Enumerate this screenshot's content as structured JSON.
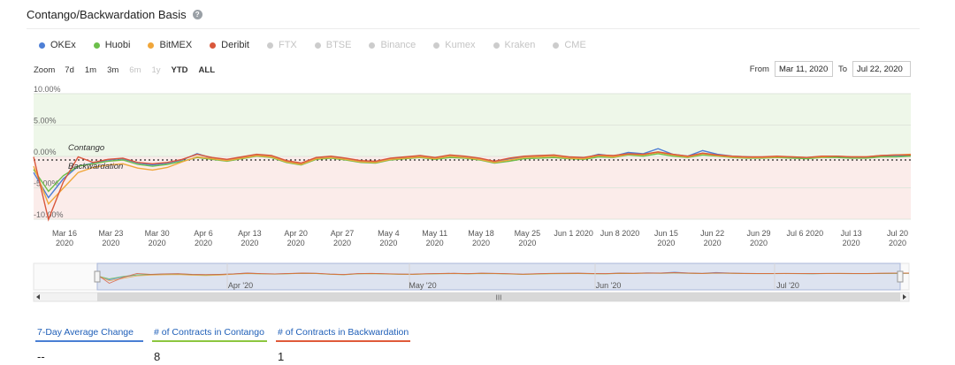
{
  "header": {
    "title": "Contango/Backwardation Basis"
  },
  "legend": [
    {
      "label": "OKEx",
      "color": "#4e7fd6",
      "active": true
    },
    {
      "label": "Huobi",
      "color": "#6cbf4b",
      "active": true
    },
    {
      "label": "BitMEX",
      "color": "#f0a63a",
      "active": true
    },
    {
      "label": "Deribit",
      "color": "#d9573b",
      "active": true
    },
    {
      "label": "FTX",
      "color": "#cccccc",
      "active": false
    },
    {
      "label": "BTSE",
      "color": "#cccccc",
      "active": false
    },
    {
      "label": "Binance",
      "color": "#cccccc",
      "active": false
    },
    {
      "label": "Kumex",
      "color": "#cccccc",
      "active": false
    },
    {
      "label": "Kraken",
      "color": "#cccccc",
      "active": false
    },
    {
      "label": "CME",
      "color": "#cccccc",
      "active": false
    }
  ],
  "zoom": {
    "label": "Zoom",
    "buttons": [
      {
        "label": "7d",
        "enabled": true
      },
      {
        "label": "1m",
        "enabled": true
      },
      {
        "label": "3m",
        "enabled": true
      },
      {
        "label": "6m",
        "enabled": false
      },
      {
        "label": "1y",
        "enabled": false
      },
      {
        "label": "YTD",
        "enabled": true
      },
      {
        "label": "ALL",
        "enabled": true
      }
    ]
  },
  "range": {
    "from_label": "From",
    "from_value": "Mar 11, 2020",
    "to_label": "To",
    "to_value": "Jul 22, 2020"
  },
  "chart_data": {
    "type": "line",
    "title": "Contango/Backwardation Basis",
    "ylim": [
      -10,
      10
    ],
    "y_ticks": [
      "10.00%",
      "5.00%",
      "0.00%",
      "-5.00%",
      "-10.00%"
    ],
    "x_ticks": [
      [
        "Mar 16",
        "2020"
      ],
      [
        "Mar 23",
        "2020"
      ],
      [
        "Mar 30",
        "2020"
      ],
      [
        "Apr 6",
        "2020"
      ],
      [
        "Apr 13",
        "2020"
      ],
      [
        "Apr 20",
        "2020"
      ],
      [
        "Apr 27",
        "2020"
      ],
      [
        "May 4",
        "2020"
      ],
      [
        "May 11",
        "2020"
      ],
      [
        "May 18",
        "2020"
      ],
      [
        "May 25",
        "2020"
      ],
      [
        "Jun 1 2020",
        ""
      ],
      [
        "Jun 8 2020",
        ""
      ],
      [
        "Jun 15",
        "2020"
      ],
      [
        "Jun 22",
        "2020"
      ],
      [
        "Jun 29",
        "2020"
      ],
      [
        "Jul 6 2020",
        ""
      ],
      [
        "Jul 13",
        "2020"
      ],
      [
        "Jul 20",
        "2020"
      ]
    ],
    "x_range": [
      "Mar 11, 2020",
      "Jul 22, 2020"
    ],
    "zones": [
      {
        "label": "Contango",
        "from": 0,
        "to": 10,
        "color": "#eef7e9"
      },
      {
        "label": "Backwardation",
        "from": -10,
        "to": 0,
        "color": "#fbecea"
      }
    ],
    "series": [
      {
        "name": "OKEx",
        "color": "#4e7fd6",
        "values": [
          -2,
          -6,
          -3,
          -1,
          -0.5,
          0,
          0.2,
          -0.5,
          -0.8,
          -0.5,
          0,
          1,
          0.3,
          0,
          0.4,
          0.8,
          0.6,
          -0.2,
          -0.6,
          0.3,
          0.5,
          0.2,
          -0.2,
          -0.3,
          0.2,
          0.4,
          0.6,
          0.3,
          0.7,
          0.5,
          0.2,
          -0.3,
          0.2,
          0.5,
          0.6,
          0.7,
          0.4,
          0.3,
          0.9,
          0.6,
          1.2,
          1.0,
          1.8,
          0.9,
          0.6,
          1.5,
          0.9,
          0.6,
          0.5,
          0.4,
          0.5,
          0.4,
          0.3,
          0.5,
          0.5,
          0.4,
          0.4,
          0.6,
          0.7,
          0.7
        ]
      },
      {
        "name": "Huobi",
        "color": "#6cbf4b",
        "values": [
          -1.5,
          -5,
          -2.5,
          -1,
          -0.6,
          -0.2,
          0,
          -0.7,
          -1.0,
          -0.7,
          -0.2,
          0.4,
          0.1,
          -0.2,
          0.2,
          0.6,
          0.4,
          -0.4,
          -0.8,
          0.1,
          0.3,
          0,
          -0.4,
          -0.5,
          0,
          0.2,
          0.4,
          0.1,
          0.4,
          0.3,
          0,
          -0.5,
          -0.2,
          0.2,
          0.3,
          0.4,
          0.2,
          0.1,
          0.5,
          0.4,
          0.8,
          0.6,
          1.0,
          0.6,
          0.4,
          0.8,
          0.6,
          0.4,
          0.3,
          0.3,
          0.4,
          0.3,
          0.2,
          0.4,
          0.4,
          0.3,
          0.3,
          0.5,
          0.5,
          0.6
        ]
      },
      {
        "name": "BitMEX",
        "color": "#f0a63a",
        "values": [
          -1,
          -7,
          -4.5,
          -2,
          -1.2,
          -0.8,
          -0.6,
          -1.3,
          -1.6,
          -1.2,
          -0.3,
          0.5,
          0.2,
          -0.1,
          0.3,
          0.7,
          0.5,
          -0.3,
          -0.7,
          0.2,
          0.4,
          0.1,
          -0.3,
          -0.4,
          0.1,
          0.3,
          0.5,
          0.2,
          0.6,
          0.4,
          0.1,
          -0.4,
          0,
          0.4,
          0.5,
          0.6,
          0.3,
          0.2,
          0.7,
          0.5,
          0.9,
          0.8,
          1.2,
          0.8,
          0.5,
          1.0,
          0.7,
          0.5,
          0.4,
          0.4,
          0.5,
          0.5,
          0.4,
          0.5,
          0.6,
          0.5,
          0.5,
          0.7,
          0.8,
          0.9
        ]
      },
      {
        "name": "Deribit",
        "color": "#d9573b",
        "values": [
          0.5,
          -9.5,
          -3.5,
          0.5,
          -0.4,
          0.1,
          0.3,
          -0.4,
          -0.6,
          -0.4,
          0.1,
          0.9,
          0.4,
          0.1,
          0.5,
          0.9,
          0.7,
          -0.1,
          -0.5,
          0.4,
          0.6,
          0.3,
          -0.1,
          -0.2,
          0.3,
          0.5,
          0.7,
          0.4,
          0.8,
          0.6,
          0.3,
          -0.2,
          0.3,
          0.6,
          0.7,
          0.8,
          0.5,
          0.4,
          0.8,
          0.7,
          1.0,
          0.9,
          1.3,
          0.9,
          0.6,
          1.1,
          0.8,
          0.6,
          0.5,
          0.5,
          0.6,
          0.5,
          0.4,
          0.6,
          0.6,
          0.5,
          0.5,
          0.7,
          0.8,
          0.8
        ]
      }
    ],
    "annotations": [
      "Contango",
      "Backwardation"
    ],
    "navigator_ticks": [
      "Apr '20",
      "May '20",
      "Jun '20",
      "Jul '20"
    ],
    "scrollbar_grip": "III"
  },
  "stats": [
    {
      "label": "7-Day Average Change",
      "value": "--"
    },
    {
      "label": "# of Contracts in Contango",
      "value": "8"
    },
    {
      "label": "# of Contracts in Backwardation",
      "value": "1"
    }
  ]
}
